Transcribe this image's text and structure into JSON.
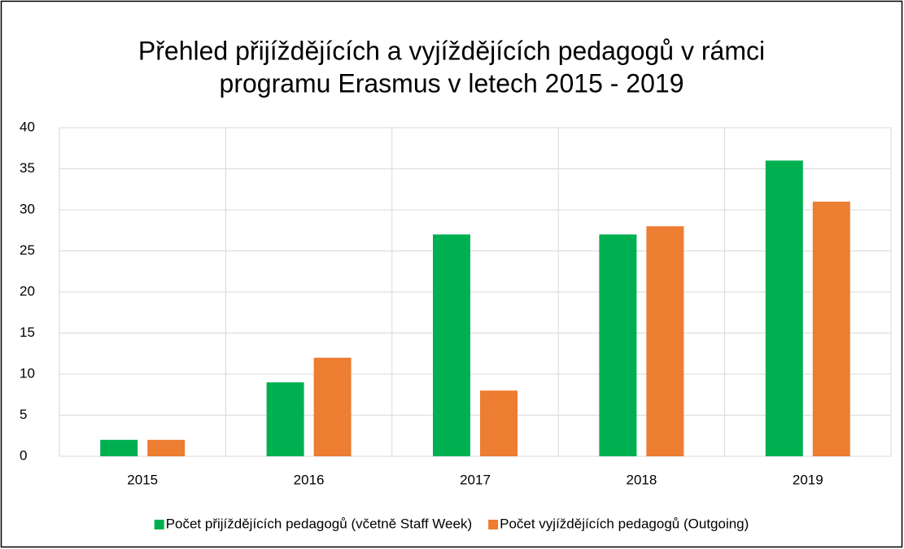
{
  "chart_data": {
    "type": "bar",
    "title": [
      "Přehled přijíždějících a vyjíždějících pedagogů v rámci",
      "programu Erasmus v letech 2015 - 2019"
    ],
    "categories": [
      "2015",
      "2016",
      "2017",
      "2018",
      "2019"
    ],
    "series": [
      {
        "name": "Počet přijíždějících pedagogů (včetně Staff Week)",
        "color": "#00b050",
        "values": [
          2,
          9,
          27,
          27,
          36
        ]
      },
      {
        "name": "Počet vyjíždějících pedagogů (Outgoing)",
        "color": "#ed7d31",
        "values": [
          2,
          12,
          8,
          28,
          31
        ]
      }
    ],
    "ylim": [
      0,
      40
    ],
    "yticks": [
      0,
      5,
      10,
      15,
      20,
      25,
      30,
      35,
      40
    ],
    "grid": true,
    "legend": "bottom"
  }
}
